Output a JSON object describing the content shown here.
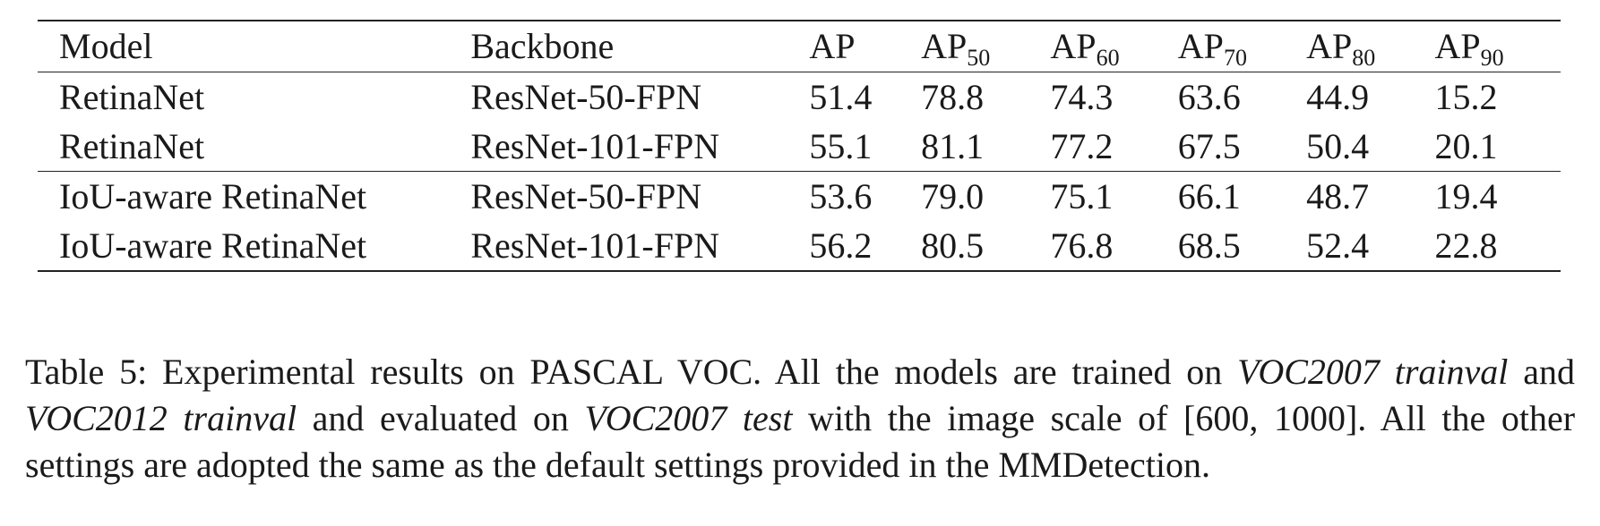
{
  "table": {
    "headers": [
      {
        "base": "Model",
        "sub": ""
      },
      {
        "base": "Backbone",
        "sub": ""
      },
      {
        "base": "AP",
        "sub": ""
      },
      {
        "base": "AP",
        "sub": "50"
      },
      {
        "base": "AP",
        "sub": "60"
      },
      {
        "base": "AP",
        "sub": "70"
      },
      {
        "base": "AP",
        "sub": "80"
      },
      {
        "base": "AP",
        "sub": "90"
      }
    ],
    "rows": [
      [
        "RetinaNet",
        "ResNet-50-FPN",
        "51.4",
        "78.8",
        "74.3",
        "63.6",
        "44.9",
        "15.2"
      ],
      [
        "RetinaNet",
        "ResNet-101-FPN",
        "55.1",
        "81.1",
        "77.2",
        "67.5",
        "50.4",
        "20.1"
      ],
      [
        "IoU-aware RetinaNet",
        "ResNet-50-FPN",
        "53.6",
        "79.0",
        "75.1",
        "66.1",
        "48.7",
        "19.4"
      ],
      [
        "IoU-aware RetinaNet",
        "ResNet-101-FPN",
        "56.2",
        "80.5",
        "76.8",
        "68.5",
        "52.4",
        "22.8"
      ]
    ]
  },
  "caption": {
    "t1": "Table 5: Experimental results on PASCAL VOC. All the models are trained on ",
    "i1": "VOC2007 trainval",
    "t2": " and ",
    "i2": "VOC2012 trainval",
    "t3": " and evaluated on ",
    "i3": "VOC2007 test",
    "t4": " with the image scale of [600, 1000]. All the other settings are adopted the same as the default settings provided in the MMDetection."
  }
}
